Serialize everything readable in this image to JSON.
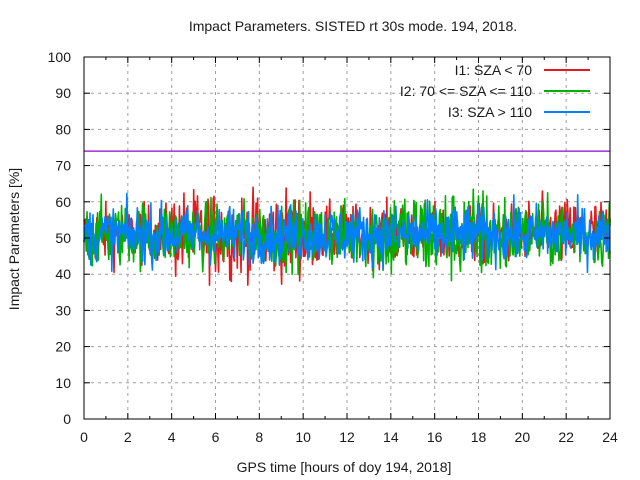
{
  "chart_data": {
    "type": "line",
    "title": "Impact Parameters. SISTED rt 30s mode. 194, 2018.",
    "xlabel": "GPS time [hours of doy 194, 2018]",
    "ylabel": "Impact Parameters [%]",
    "xlim": [
      0,
      24
    ],
    "ylim": [
      0,
      100
    ],
    "xticks": [
      0,
      2,
      4,
      6,
      8,
      10,
      12,
      14,
      16,
      18,
      20,
      22,
      24
    ],
    "xticks_labels": [
      "0",
      "2",
      "4",
      "6",
      "8",
      "10",
      "12",
      "14",
      "16",
      "18",
      "20",
      "22",
      "24"
    ],
    "yticks": [
      0,
      10,
      20,
      30,
      40,
      50,
      60,
      70,
      80,
      90,
      100
    ],
    "yticks_labels": [
      "0",
      "10",
      "20",
      "30",
      "40",
      "50",
      "60",
      "70",
      "80",
      "90",
      "100"
    ],
    "grid": true,
    "legend_position": "top-right",
    "reference_line": {
      "y": 74,
      "color": "#9400d3"
    },
    "series": [
      {
        "name": "I1: SZA < 70",
        "color": "#e41a1c",
        "mean": 51,
        "typical_range": [
          43,
          59
        ],
        "extreme_range": [
          37,
          64
        ],
        "active_hours": "0-24, dominant 4-10"
      },
      {
        "name": "I2: 70 <= SZA <= 110",
        "color": "#00b000",
        "mean": 51,
        "typical_range": [
          43,
          59
        ],
        "extreme_range": [
          35,
          66
        ],
        "active_hours": "0-24, dominant 13-19"
      },
      {
        "name": "I3: SZA > 110",
        "color": "#0080ff",
        "mean": 51,
        "typical_range": [
          44,
          58
        ],
        "extreme_range": [
          35,
          64
        ],
        "active_hours": "0-24"
      }
    ]
  }
}
